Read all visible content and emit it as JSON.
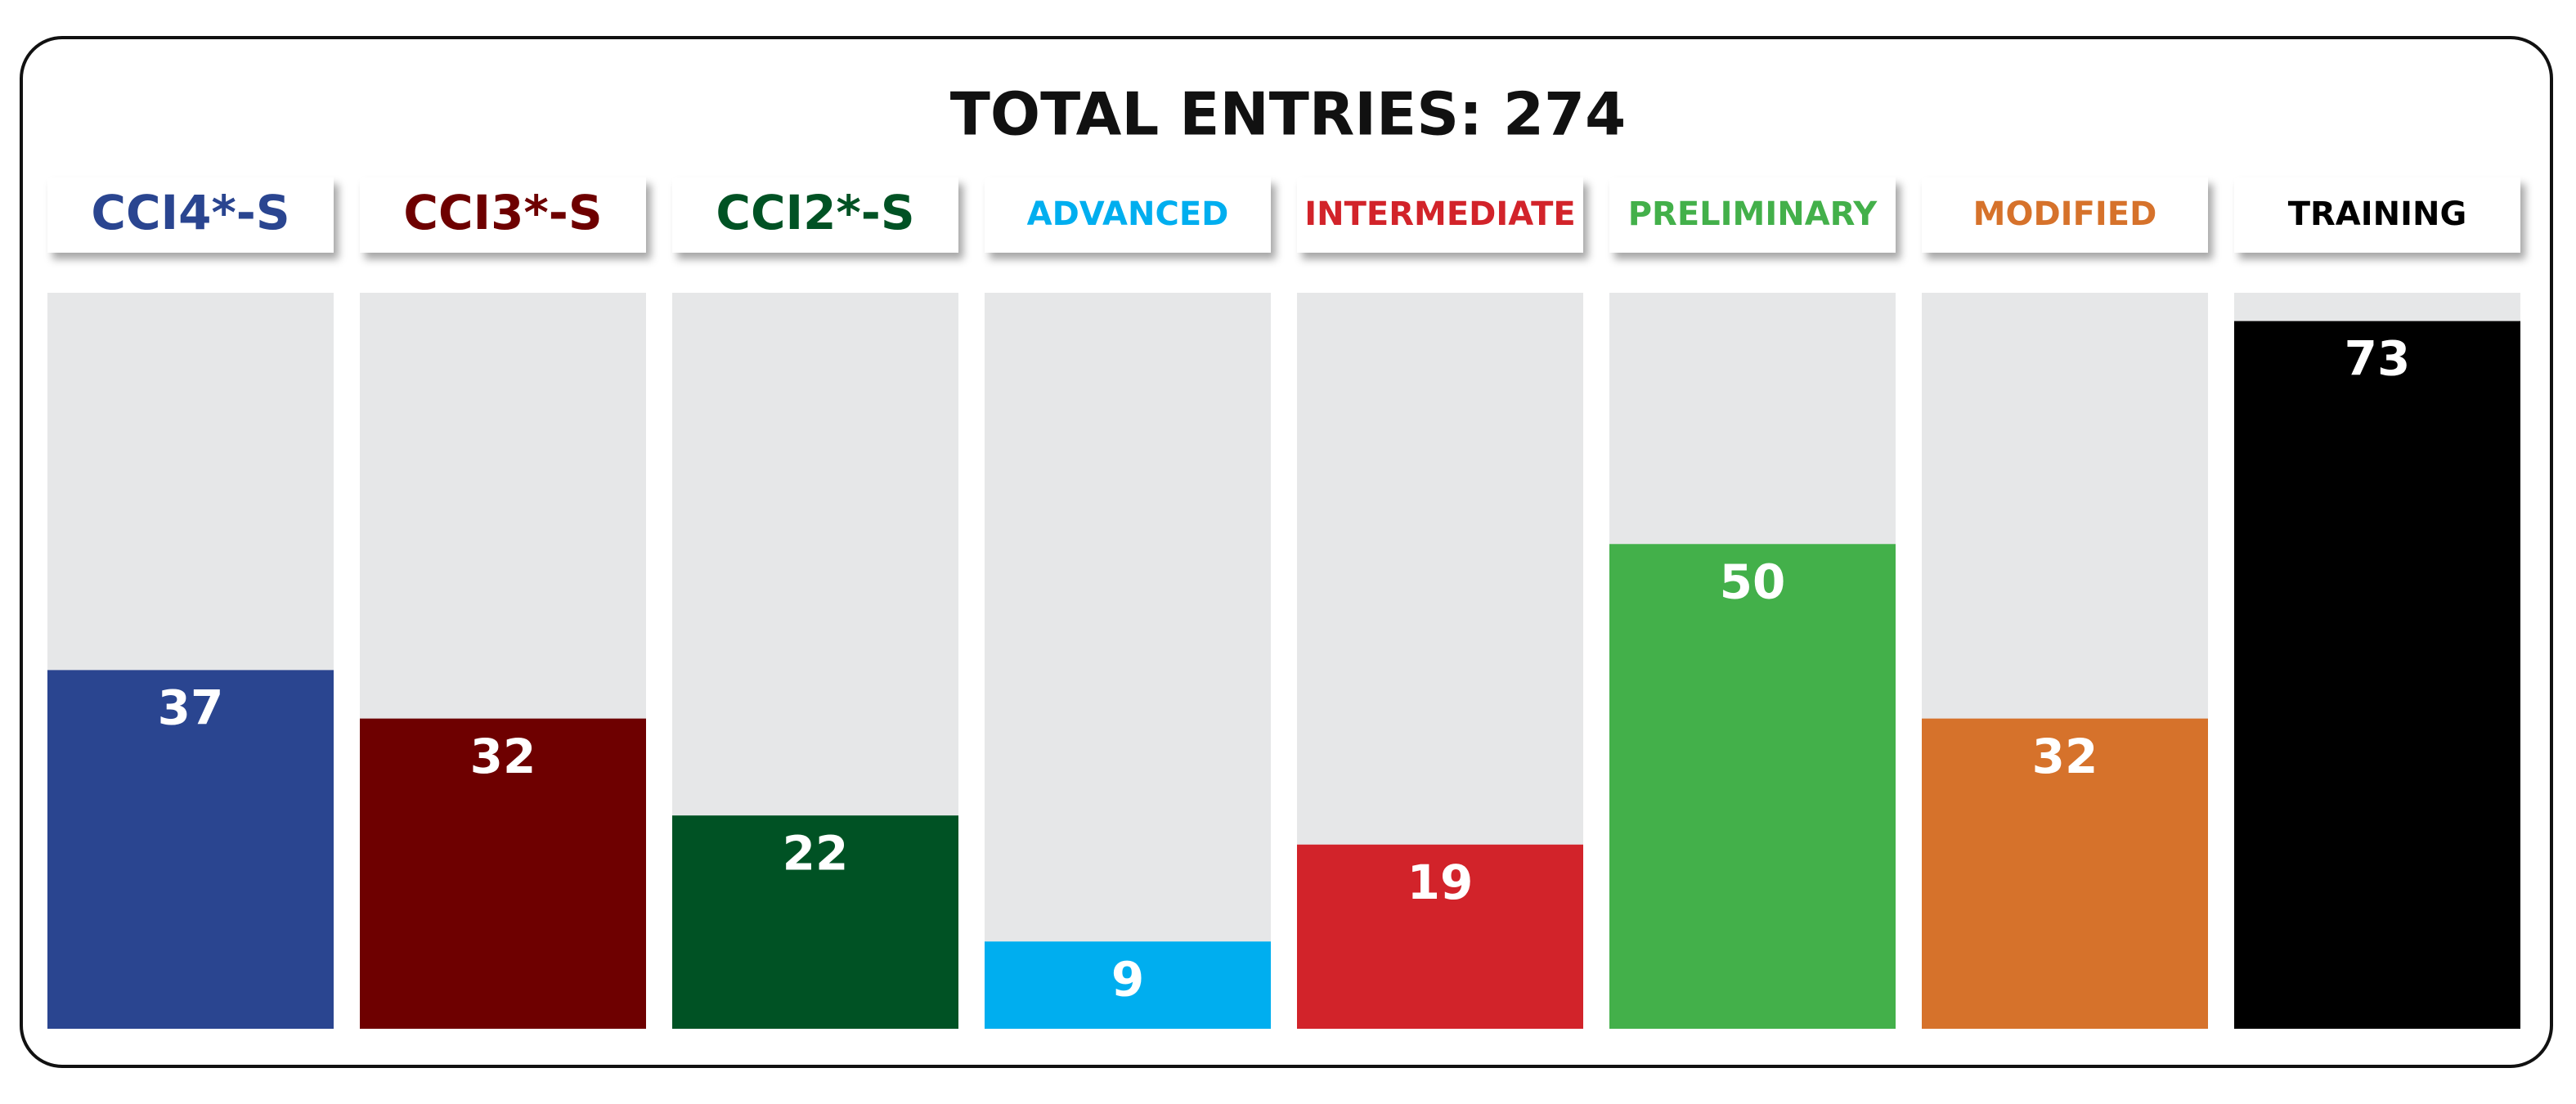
{
  "chart_data": {
    "type": "bar",
    "title": "TOTAL ENTRIES: 274",
    "categories": [
      "CCI4*-S",
      "CCI3*-S",
      "CCI2*-S",
      "ADVANCED",
      "INTERMEDIATE",
      "PRELIMINARY",
      "MODIFIED",
      "TRAINING"
    ],
    "values": [
      37,
      32,
      22,
      9,
      19,
      50,
      32,
      73
    ],
    "colors": [
      "#2a4590",
      "#6e0000",
      "#005224",
      "#00aeef",
      "#d2232a",
      "#43b04a",
      "#d6722b",
      "#000000"
    ]
  }
}
